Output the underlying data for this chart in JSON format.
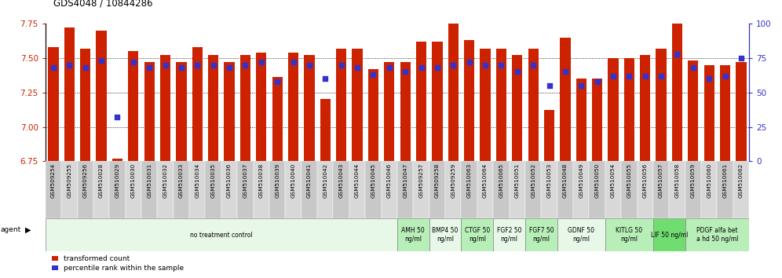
{
  "title": "GDS4048 / 10844286",
  "samples": [
    "GSM509254",
    "GSM509255",
    "GSM509256",
    "GSM510028",
    "GSM510029",
    "GSM510030",
    "GSM510031",
    "GSM510032",
    "GSM510033",
    "GSM510034",
    "GSM510035",
    "GSM510036",
    "GSM510037",
    "GSM510038",
    "GSM510039",
    "GSM510040",
    "GSM510041",
    "GSM510042",
    "GSM510043",
    "GSM510044",
    "GSM510045",
    "GSM510046",
    "GSM510047",
    "GSM509257",
    "GSM509258",
    "GSM509259",
    "GSM510063",
    "GSM510064",
    "GSM510065",
    "GSM510051",
    "GSM510052",
    "GSM510053",
    "GSM510048",
    "GSM510049",
    "GSM510050",
    "GSM510054",
    "GSM510055",
    "GSM510056",
    "GSM510057",
    "GSM510058",
    "GSM510059",
    "GSM510060",
    "GSM510061",
    "GSM510062"
  ],
  "bar_values": [
    7.58,
    7.72,
    7.57,
    7.7,
    6.77,
    7.55,
    7.47,
    7.52,
    7.47,
    7.58,
    7.52,
    7.47,
    7.52,
    7.54,
    7.36,
    7.54,
    7.52,
    7.2,
    7.57,
    7.57,
    7.42,
    7.47,
    7.47,
    7.62,
    7.62,
    7.8,
    7.63,
    7.57,
    7.57,
    7.52,
    7.57,
    7.12,
    7.65,
    7.35,
    7.35,
    7.5,
    7.5,
    7.52,
    7.57,
    7.75,
    7.48,
    7.45,
    7.45,
    7.47
  ],
  "dot_values": [
    68,
    70,
    68,
    73,
    32,
    72,
    68,
    70,
    68,
    70,
    70,
    68,
    70,
    72,
    58,
    72,
    70,
    60,
    70,
    68,
    63,
    68,
    65,
    68,
    68,
    70,
    72,
    70,
    70,
    65,
    70,
    55,
    65,
    55,
    58,
    62,
    62,
    62,
    62,
    78,
    68,
    60,
    62,
    75
  ],
  "agent_groups": [
    {
      "label": "no treatment control",
      "start": 0,
      "end": 22,
      "color": "#e8f8e8"
    },
    {
      "label": "AMH 50\nng/ml",
      "start": 22,
      "end": 24,
      "color": "#b8eeb8"
    },
    {
      "label": "BMP4 50\nng/ml",
      "start": 24,
      "end": 26,
      "color": "#e8f8e8"
    },
    {
      "label": "CTGF 50\nng/ml",
      "start": 26,
      "end": 28,
      "color": "#b8eeb8"
    },
    {
      "label": "FGF2 50\nng/ml",
      "start": 28,
      "end": 30,
      "color": "#e8f8e8"
    },
    {
      "label": "FGF7 50\nng/ml",
      "start": 30,
      "end": 32,
      "color": "#b8eeb8"
    },
    {
      "label": "GDNF 50\nng/ml",
      "start": 32,
      "end": 35,
      "color": "#e8f8e8"
    },
    {
      "label": "KITLG 50\nng/ml",
      "start": 35,
      "end": 38,
      "color": "#b8eeb8"
    },
    {
      "label": "LIF 50 ng/ml",
      "start": 38,
      "end": 40,
      "color": "#70dd70"
    },
    {
      "label": "PDGF alfa bet\na hd 50 ng/ml",
      "start": 40,
      "end": 44,
      "color": "#b8eeb8"
    }
  ],
  "ylim_left": [
    6.75,
    7.75
  ],
  "ylim_right": [
    0,
    100
  ],
  "yticks_left": [
    6.75,
    7.0,
    7.25,
    7.5,
    7.75
  ],
  "yticks_right": [
    0,
    25,
    50,
    75,
    100
  ],
  "bar_color": "#cc2200",
  "dot_color": "#3333cc",
  "bar_bottom": 6.75,
  "bg_color": "#ffffff"
}
